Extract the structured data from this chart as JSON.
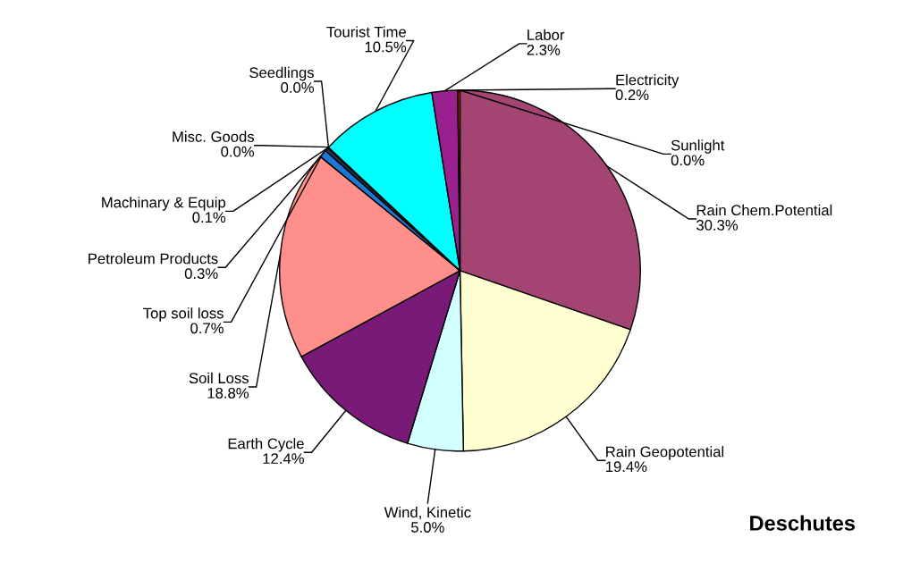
{
  "chart_data": {
    "type": "pie",
    "title": "Deschutes",
    "categories": [
      "Sunlight",
      "Rain Chem.Potential",
      "Rain Geopotential",
      "Wind, Kinetic",
      "Earth Cycle",
      "Soil Loss",
      "Top soil loss",
      "Petroleum Products",
      "Machinary & Equip",
      "Misc. Goods",
      "Seedlings",
      "Tourist Time",
      "Labor",
      "Electricity"
    ],
    "values": [
      0.0,
      30.3,
      19.4,
      5.0,
      12.4,
      18.8,
      0.7,
      0.3,
      0.1,
      0.0,
      0.0,
      10.5,
      2.3,
      0.2
    ],
    "value_labels": [
      "0.0%",
      "30.3%",
      "19.4%",
      "5.0%",
      "12.4%",
      "18.8%",
      "0.7%",
      "0.3%",
      "0.1%",
      "0.0%",
      "0.0%",
      "10.5%",
      "2.3%",
      "0.2%"
    ],
    "colors": [
      "#ffff66",
      "#a34473",
      "#ffffd2",
      "#d2ffff",
      "#7a1a78",
      "#ff8f8a",
      "#1f77d4",
      "#1a3a5a",
      "#203040",
      "#808080",
      "#40a040",
      "#00ffff",
      "#9a2090",
      "#cc1100"
    ]
  }
}
